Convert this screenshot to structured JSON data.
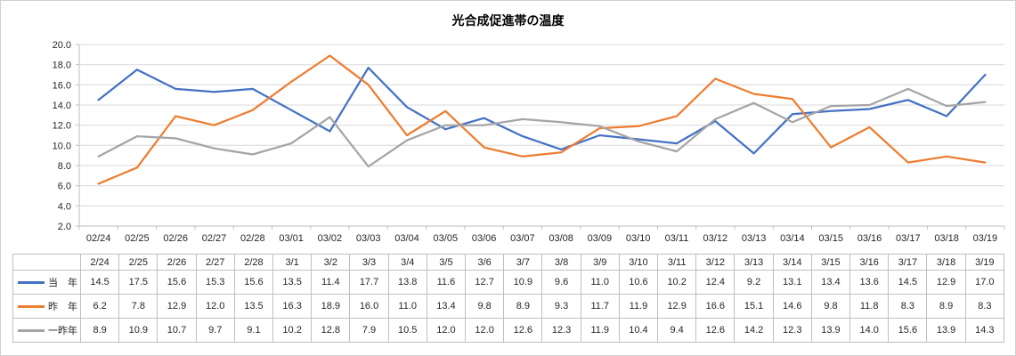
{
  "chart_data": {
    "type": "line",
    "title": "光合成促進帯の温度",
    "x_axis_labels": [
      "02/24",
      "02/25",
      "02/26",
      "02/27",
      "02/28",
      "03/01",
      "03/02",
      "03/03",
      "03/04",
      "03/05",
      "03/06",
      "03/07",
      "03/08",
      "03/09",
      "03/10",
      "03/11",
      "03/12",
      "03/13",
      "03/14",
      "03/15",
      "03/16",
      "03/17",
      "03/18",
      "03/19"
    ],
    "y_tick_labels": [
      "20.0",
      "18.0",
      "16.0",
      "14.0",
      "12.0",
      "10.0",
      "8.0",
      "6.0",
      "4.0",
      "2.0"
    ],
    "ylim": [
      2.0,
      20.0
    ],
    "ytick_step": 2.0,
    "grid": "horizontal gridlines on",
    "legend_position": "left column of data table",
    "data_table": {
      "column_headers": [
        "2/24",
        "2/25",
        "2/26",
        "2/27",
        "2/28",
        "3/1",
        "3/2",
        "3/3",
        "3/4",
        "3/5",
        "3/6",
        "3/7",
        "3/8",
        "3/9",
        "3/10",
        "3/11",
        "3/12",
        "3/13",
        "3/14",
        "3/15",
        "3/16",
        "3/17",
        "3/18",
        "3/19"
      ]
    },
    "series": [
      {
        "id": "this-year",
        "name": "当　年",
        "color": "#4472C4",
        "values": [
          14.5,
          17.5,
          15.6,
          15.3,
          15.6,
          13.5,
          11.4,
          17.7,
          13.8,
          11.6,
          12.7,
          10.9,
          9.6,
          11.0,
          10.6,
          10.2,
          12.4,
          9.2,
          13.1,
          13.4,
          13.6,
          14.5,
          12.9,
          17.0
        ]
      },
      {
        "id": "last-year",
        "name": "昨　年",
        "color": "#ED7D31",
        "values": [
          6.2,
          7.8,
          12.9,
          12.0,
          13.5,
          16.3,
          18.9,
          16.0,
          11.0,
          13.4,
          9.8,
          8.9,
          9.3,
          11.7,
          11.9,
          12.9,
          16.6,
          15.1,
          14.6,
          9.8,
          11.8,
          8.3,
          8.9,
          8.3
        ]
      },
      {
        "id": "two-years-ago",
        "name": "一昨年",
        "color": "#A5A5A5",
        "values": [
          8.9,
          10.9,
          10.7,
          9.7,
          9.1,
          10.2,
          12.8,
          7.9,
          10.5,
          12.0,
          12.0,
          12.6,
          12.3,
          11.9,
          10.4,
          9.4,
          12.6,
          14.2,
          12.3,
          13.9,
          14.0,
          15.6,
          13.9,
          14.3
        ]
      }
    ]
  },
  "styles": {
    "accent_blue": "#4472C4",
    "accent_orange": "#ED7D31",
    "accent_gray": "#A5A5A5",
    "gridline_color": "#D9D9D9",
    "axis_color": "#BFBFBF",
    "table_border_color": "#BFBFBF",
    "text_color": "#262626"
  }
}
